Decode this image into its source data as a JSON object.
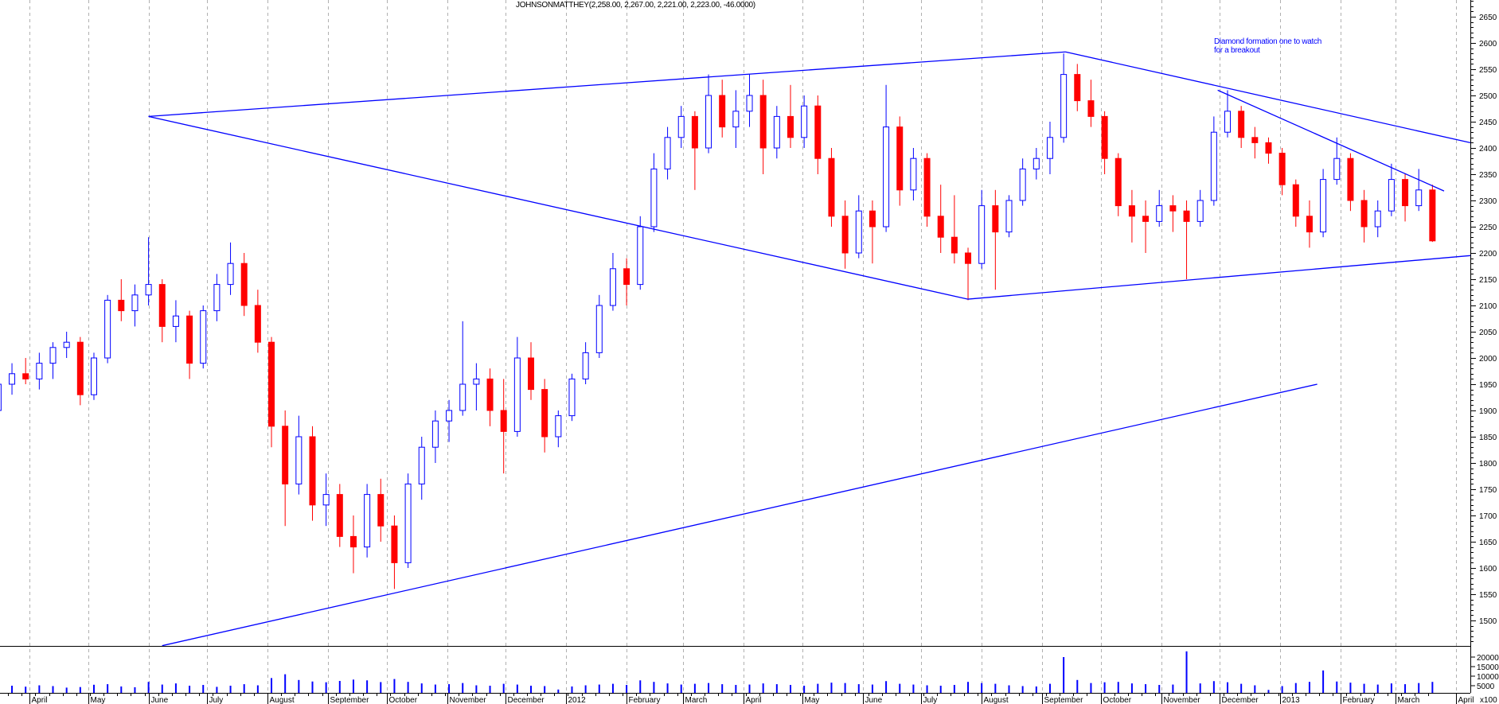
{
  "title": "JOHNSONMATTHEY(2,258.00, 2,267.00, 2,221.00, 2,223.00, -46.0000)",
  "annotation": {
    "line1": "Diamond formation one to watch",
    "line2": "for a breakout"
  },
  "colors": {
    "up": "#0000ff",
    "down": "#ff0000",
    "trendline": "#0000ff",
    "volume": "#0000ff",
    "grid": "#b0b0b0"
  },
  "chart_data": {
    "type": "candlestick",
    "title": "JOHNSONMATTHEY(2,258.00, 2,267.00, 2,221.00, 2,223.00, -46.0000)",
    "ylim": [
      1452,
      2680
    ],
    "yticks": [
      1500,
      1550,
      1600,
      1650,
      1700,
      1750,
      1800,
      1850,
      1900,
      1950,
      2000,
      2050,
      2100,
      2150,
      2200,
      2250,
      2300,
      2350,
      2400,
      2450,
      2500,
      2550,
      2600,
      2650
    ],
    "volume_ylim": [
      0,
      24000
    ],
    "volume_ticks": [
      "20000",
      "15000",
      "10000",
      "5000"
    ],
    "volume_unit": "x100",
    "grid": "vertical dashed at month starts",
    "months": [
      {
        "date": "2011-04-01",
        "label": "April"
      },
      {
        "date": "2011-05-01",
        "label": "May"
      },
      {
        "date": "2011-06-01",
        "label": "June"
      },
      {
        "date": "2011-07-01",
        "label": "July"
      },
      {
        "date": "2011-08-01",
        "label": "August"
      },
      {
        "date": "2011-09-01",
        "label": "September"
      },
      {
        "date": "2011-10-01",
        "label": "October"
      },
      {
        "date": "2011-11-01",
        "label": "November"
      },
      {
        "date": "2011-12-01",
        "label": "December"
      },
      {
        "date": "2012-01-01",
        "label": "2012"
      },
      {
        "date": "2012-02-01",
        "label": "February"
      },
      {
        "date": "2012-03-01",
        "label": "March"
      },
      {
        "date": "2012-04-01",
        "label": "April"
      },
      {
        "date": "2012-05-01",
        "label": "May"
      },
      {
        "date": "2012-06-01",
        "label": "June"
      },
      {
        "date": "2012-07-01",
        "label": "July"
      },
      {
        "date": "2012-08-01",
        "label": "August"
      },
      {
        "date": "2012-09-01",
        "label": "September"
      },
      {
        "date": "2012-10-01",
        "label": "October"
      },
      {
        "date": "2012-11-01",
        "label": "November"
      },
      {
        "date": "2012-12-01",
        "label": "December"
      },
      {
        "date": "2013-01-01",
        "label": "2013"
      },
      {
        "date": "2013-02-01",
        "label": "February"
      },
      {
        "date": "2013-03-01",
        "label": "March"
      },
      {
        "date": "2013-04-01",
        "label": "April"
      }
    ],
    "candles_fields": [
      "week",
      "open",
      "high",
      "low",
      "close",
      "volume"
    ],
    "candles": [
      [
        "2011-03-14",
        1900,
        1960,
        1880,
        1950,
        6500
      ],
      [
        "2011-03-21",
        1950,
        1990,
        1930,
        1970,
        5000
      ],
      [
        "2011-03-28",
        1970,
        2000,
        1950,
        1960,
        4500
      ],
      [
        "2011-04-04",
        1960,
        2010,
        1940,
        1990,
        5200
      ],
      [
        "2011-04-11",
        1990,
        2030,
        1960,
        2020,
        4800
      ],
      [
        "2011-04-18",
        2020,
        2050,
        2000,
        2030,
        4000
      ],
      [
        "2011-04-25",
        2030,
        2040,
        1910,
        1930,
        4300
      ],
      [
        "2011-05-02",
        1930,
        2010,
        1920,
        2000,
        5500
      ],
      [
        "2011-05-09",
        2000,
        2120,
        1990,
        2110,
        5800
      ],
      [
        "2011-05-16",
        2110,
        2150,
        2070,
        2090,
        4600
      ],
      [
        "2011-05-23",
        2090,
        2140,
        2060,
        2120,
        4200
      ],
      [
        "2011-05-30",
        2120,
        2230,
        2100,
        2140,
        7000
      ],
      [
        "2011-06-06",
        2140,
        2150,
        2030,
        2060,
        5600
      ],
      [
        "2011-06-13",
        2060,
        2110,
        2030,
        2080,
        6200
      ],
      [
        "2011-06-20",
        2080,
        2090,
        1960,
        1990,
        5000
      ],
      [
        "2011-06-27",
        1990,
        2100,
        1980,
        2090,
        5400
      ],
      [
        "2011-07-04",
        2090,
        2160,
        2070,
        2140,
        4400
      ],
      [
        "2011-07-11",
        2140,
        2220,
        2120,
        2180,
        5000
      ],
      [
        "2011-07-18",
        2180,
        2200,
        2080,
        2100,
        5800
      ],
      [
        "2011-07-25",
        2100,
        2130,
        2010,
        2030,
        5200
      ],
      [
        "2011-08-01",
        2030,
        2040,
        1830,
        1870,
        9000
      ],
      [
        "2011-08-08",
        1870,
        1900,
        1680,
        1760,
        11000
      ],
      [
        "2011-08-15",
        1760,
        1890,
        1740,
        1850,
        8000
      ],
      [
        "2011-08-22",
        1850,
        1870,
        1690,
        1720,
        7200
      ],
      [
        "2011-08-29",
        1720,
        1780,
        1680,
        1740,
        6800
      ],
      [
        "2011-09-05",
        1740,
        1760,
        1640,
        1660,
        7500
      ],
      [
        "2011-09-12",
        1660,
        1700,
        1590,
        1640,
        8200
      ],
      [
        "2011-09-19",
        1640,
        1760,
        1620,
        1740,
        7800
      ],
      [
        "2011-09-26",
        1740,
        1770,
        1650,
        1680,
        6900
      ],
      [
        "2011-10-03",
        1680,
        1700,
        1560,
        1610,
        8500
      ],
      [
        "2011-10-10",
        1610,
        1780,
        1600,
        1760,
        7000
      ],
      [
        "2011-10-17",
        1760,
        1850,
        1730,
        1830,
        6200
      ],
      [
        "2011-10-24",
        1830,
        1900,
        1800,
        1880,
        5600
      ],
      [
        "2011-10-31",
        1880,
        1920,
        1840,
        1900,
        5800
      ],
      [
        "2011-11-07",
        1900,
        2070,
        1890,
        1950,
        6400
      ],
      [
        "2011-11-14",
        1950,
        1990,
        1900,
        1960,
        5200
      ],
      [
        "2011-11-21",
        1960,
        1980,
        1870,
        1900,
        5000
      ],
      [
        "2011-11-28",
        1900,
        1960,
        1780,
        1860,
        6000
      ],
      [
        "2011-12-05",
        1860,
        2040,
        1850,
        2000,
        5600
      ],
      [
        "2011-12-12",
        2000,
        2030,
        1920,
        1940,
        5000
      ],
      [
        "2011-12-19",
        1940,
        1960,
        1820,
        1850,
        4800
      ],
      [
        "2011-12-26",
        1850,
        1900,
        1830,
        1890,
        3000
      ],
      [
        "2012-01-02",
        1890,
        1970,
        1880,
        1960,
        4600
      ],
      [
        "2012-01-09",
        1960,
        2030,
        1950,
        2010,
        5200
      ],
      [
        "2012-01-16",
        2010,
        2120,
        2000,
        2100,
        5600
      ],
      [
        "2012-01-23",
        2100,
        2200,
        2090,
        2170,
        6000
      ],
      [
        "2012-01-30",
        2170,
        2190,
        2100,
        2140,
        5400
      ],
      [
        "2012-02-06",
        2140,
        2270,
        2130,
        2250,
        7800
      ],
      [
        "2012-02-13",
        2250,
        2390,
        2240,
        2360,
        7000
      ],
      [
        "2012-02-20",
        2360,
        2440,
        2340,
        2420,
        6200
      ],
      [
        "2012-02-27",
        2420,
        2480,
        2400,
        2460,
        5600
      ],
      [
        "2012-03-05",
        2460,
        2470,
        2320,
        2400,
        6000
      ],
      [
        "2012-03-12",
        2400,
        2540,
        2390,
        2500,
        6400
      ],
      [
        "2012-03-19",
        2500,
        2530,
        2420,
        2440,
        5800
      ],
      [
        "2012-03-26",
        2440,
        2510,
        2400,
        2470,
        5400
      ],
      [
        "2012-04-02",
        2470,
        2540,
        2440,
        2500,
        5600
      ],
      [
        "2012-04-09",
        2500,
        2530,
        2350,
        2400,
        6200
      ],
      [
        "2012-04-16",
        2400,
        2480,
        2380,
        2460,
        5800
      ],
      [
        "2012-04-23",
        2460,
        2520,
        2400,
        2420,
        5400
      ],
      [
        "2012-04-30",
        2420,
        2500,
        2400,
        2480,
        5000
      ],
      [
        "2012-05-07",
        2480,
        2500,
        2350,
        2380,
        6000
      ],
      [
        "2012-05-14",
        2380,
        2400,
        2250,
        2270,
        6600
      ],
      [
        "2012-05-21",
        2270,
        2300,
        2170,
        2200,
        6400
      ],
      [
        "2012-05-28",
        2200,
        2310,
        2190,
        2280,
        5800
      ],
      [
        "2012-06-04",
        2280,
        2300,
        2180,
        2250,
        5600
      ],
      [
        "2012-06-11",
        2250,
        2520,
        2240,
        2440,
        7400
      ],
      [
        "2012-06-18",
        2440,
        2460,
        2290,
        2320,
        6000
      ],
      [
        "2012-06-25",
        2320,
        2400,
        2300,
        2380,
        5600
      ],
      [
        "2012-07-02",
        2380,
        2390,
        2250,
        2270,
        5200
      ],
      [
        "2012-07-09",
        2270,
        2330,
        2200,
        2230,
        5000
      ],
      [
        "2012-07-16",
        2230,
        2310,
        2180,
        2200,
        5400
      ],
      [
        "2012-07-23",
        2200,
        2210,
        2110,
        2180,
        7000
      ],
      [
        "2012-07-30",
        2180,
        2320,
        2170,
        2290,
        6400
      ],
      [
        "2012-08-06",
        2290,
        2320,
        2130,
        2240,
        6000
      ],
      [
        "2012-08-13",
        2240,
        2310,
        2230,
        2300,
        5200
      ],
      [
        "2012-08-20",
        2300,
        2380,
        2290,
        2360,
        4800
      ],
      [
        "2012-08-27",
        2360,
        2400,
        2340,
        2380,
        4600
      ],
      [
        "2012-09-03",
        2380,
        2450,
        2350,
        2420,
        6000
      ],
      [
        "2012-09-10",
        2420,
        2580,
        2410,
        2540,
        20000
      ],
      [
        "2012-09-17",
        2540,
        2560,
        2470,
        2490,
        8000
      ],
      [
        "2012-09-24",
        2490,
        2530,
        2440,
        2460,
        6400
      ],
      [
        "2012-10-01",
        2460,
        2470,
        2350,
        2380,
        6800
      ],
      [
        "2012-10-08",
        2380,
        2390,
        2270,
        2290,
        7000
      ],
      [
        "2012-10-15",
        2290,
        2320,
        2220,
        2270,
        6200
      ],
      [
        "2012-10-22",
        2270,
        2300,
        2200,
        2260,
        5800
      ],
      [
        "2012-10-29",
        2260,
        2320,
        2250,
        2290,
        5400
      ],
      [
        "2012-11-05",
        2290,
        2310,
        2240,
        2280,
        5600
      ],
      [
        "2012-11-12",
        2280,
        2300,
        2150,
        2260,
        23000
      ],
      [
        "2012-11-19",
        2260,
        2320,
        2250,
        2300,
        6200
      ],
      [
        "2012-11-26",
        2300,
        2460,
        2290,
        2430,
        7400
      ],
      [
        "2012-12-03",
        2430,
        2510,
        2420,
        2470,
        6800
      ],
      [
        "2012-12-10",
        2470,
        2480,
        2400,
        2420,
        6000
      ],
      [
        "2012-12-17",
        2420,
        2440,
        2380,
        2410,
        5200
      ],
      [
        "2012-12-24",
        2410,
        2420,
        2370,
        2390,
        2800
      ],
      [
        "2012-12-31",
        2390,
        2400,
        2310,
        2330,
        4800
      ],
      [
        "2013-01-07",
        2330,
        2340,
        2250,
        2270,
        6400
      ],
      [
        "2013-01-14",
        2270,
        2300,
        2210,
        2240,
        7000
      ],
      [
        "2013-01-21",
        2240,
        2360,
        2230,
        2340,
        13000
      ],
      [
        "2013-01-28",
        2340,
        2420,
        2330,
        2380,
        7200
      ],
      [
        "2013-02-04",
        2380,
        2390,
        2280,
        2300,
        6600
      ],
      [
        "2013-02-11",
        2300,
        2320,
        2220,
        2250,
        6000
      ],
      [
        "2013-02-18",
        2250,
        2300,
        2230,
        2280,
        5600
      ],
      [
        "2013-02-25",
        2280,
        2370,
        2270,
        2340,
        6200
      ],
      [
        "2013-03-04",
        2340,
        2350,
        2260,
        2290,
        5800
      ],
      [
        "2013-03-11",
        2290,
        2360,
        2280,
        2320,
        6400
      ],
      [
        "2013-03-18",
        2320,
        2330,
        2221,
        2223,
        7000
      ]
    ],
    "trendlines": [
      {
        "points": [
          [
            "2011-06-01",
            2460
          ],
          [
            "2012-09-13",
            2583
          ]
        ]
      },
      {
        "points": [
          [
            "2012-09-13",
            2583
          ],
          [
            "2013-04-10",
            2410
          ]
        ]
      },
      {
        "points": [
          [
            "2011-06-01",
            2460
          ],
          [
            "2012-07-25",
            2112
          ]
        ]
      },
      {
        "points": [
          [
            "2012-07-25",
            2112
          ],
          [
            "2013-04-10",
            2195
          ]
        ]
      },
      {
        "points": [
          [
            "2012-11-30",
            2510
          ],
          [
            "2013-03-26",
            2318
          ]
        ]
      },
      {
        "points": [
          [
            "2011-06-08",
            1452
          ],
          [
            "2013-01-20",
            1950
          ]
        ]
      }
    ]
  }
}
